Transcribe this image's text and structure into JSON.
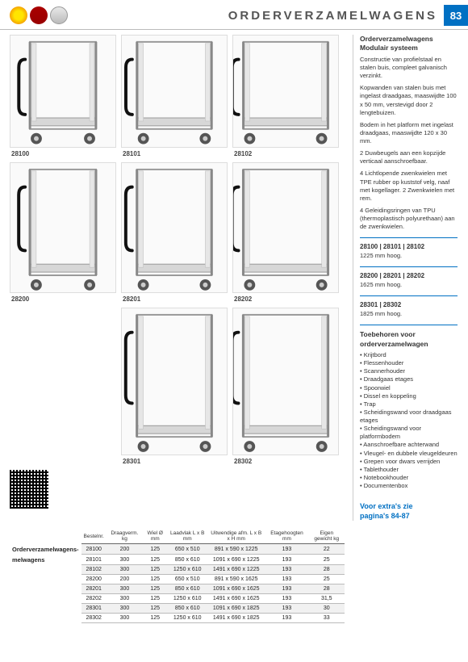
{
  "page": {
    "title": "ORDERVERZAMELWAGENS",
    "number": "83"
  },
  "products": {
    "row1": [
      {
        "code": "28100",
        "w": 0.7
      },
      {
        "code": "28101",
        "w": 0.82
      },
      {
        "code": "28102",
        "w": 0.96
      }
    ],
    "row2": [
      {
        "code": "28200",
        "w": 0.7
      },
      {
        "code": "28201",
        "w": 0.82
      },
      {
        "code": "28202",
        "w": 0.96
      }
    ],
    "row3": [
      {
        "code": "28301",
        "w": 0.82
      },
      {
        "code": "28302",
        "w": 0.96
      }
    ]
  },
  "sidebar": {
    "h1": "Orderverzamelwagens Modulair systeem",
    "paras": [
      "Constructie van profielstaal en stalen buis, compleet galvanisch verzinkt.",
      "Kopwanden van stalen buis met ingelast draadgaas, maaswijdte 100 x 50 mm, verstevigd door 2 lengtebuizen.",
      "Bodem in het platform met ingelast draadgaas, maaswijdte 120 x 30 mm.",
      "2 Duwbeugels aan een kopzijde verticaal aanschroefbaar.",
      "4 Lichtlopende zwenkwielen met TPE rubber op kuststof velg, naaf met kogellager. 2 Zwenkwielen met rem.",
      "4 Geleidingsringen van TPU (thermoplastisch polyurethaan) aan de zwenkwielen."
    ],
    "groups": [
      {
        "codes": "28100 | 28101 | 28102",
        "text": "1225 mm hoog."
      },
      {
        "codes": "28200 | 28201 | 28202",
        "text": "1625 mm hoog."
      },
      {
        "codes": "28301 | 28302",
        "text": "1825 mm hoog."
      }
    ],
    "acc_h": "Toebehoren voor orderverzamelwagen",
    "acc": [
      "Krijtbord",
      "Flessenhouder",
      "Scannerhouder",
      "Draadgaas etages",
      "Spoorwiel",
      "Dissel en koppeling",
      "Trap",
      "Scheidingswand voor draadgaas etages",
      "Scheidingswand voor platformbodem",
      "Aanschroefbare achterwand",
      "Vleugel- en dubbele vleugeldeuren",
      "Grepen voor dwars verrijden",
      "Tablethouder",
      "Notebookhouder",
      "Documentenbox"
    ],
    "extra1": "Voor extra's zie",
    "extra2": "pagina's 84-87"
  },
  "table": {
    "rowheader": "Orderverzamelwagens",
    "columns": [
      "Bestelnr.",
      "Draagverm. kg",
      "Wiel Ø mm",
      "Laadvlak L x B mm",
      "Uitwendige afm. L x B x H mm",
      "Etagehoogten mm",
      "Eigen gewicht kg"
    ],
    "rows": [
      [
        "28100",
        "200",
        "125",
        "650 x 510",
        "891 x 590 x 1225",
        "193",
        "22"
      ],
      [
        "28101",
        "300",
        "125",
        "850 x 610",
        "1091 x 690 x 1225",
        "193",
        "25"
      ],
      [
        "28102",
        "300",
        "125",
        "1250 x 610",
        "1491 x 690 x 1225",
        "193",
        "28"
      ],
      [
        "28200",
        "200",
        "125",
        "650 x 510",
        "891 x 590 x 1625",
        "193",
        "25"
      ],
      [
        "28201",
        "300",
        "125",
        "850 x 610",
        "1091 x 690 x 1625",
        "193",
        "28"
      ],
      [
        "28202",
        "300",
        "125",
        "1250 x 610",
        "1491 x 690 x 1625",
        "193",
        "31,5"
      ],
      [
        "28301",
        "300",
        "125",
        "850 x 610",
        "1091 x 690 x 1825",
        "193",
        "30"
      ],
      [
        "28302",
        "300",
        "125",
        "1250 x 610",
        "1491 x 690 x 1825",
        "193",
        "33"
      ]
    ]
  },
  "colors": {
    "accent": "#0070c3",
    "grid": "#bbb"
  }
}
